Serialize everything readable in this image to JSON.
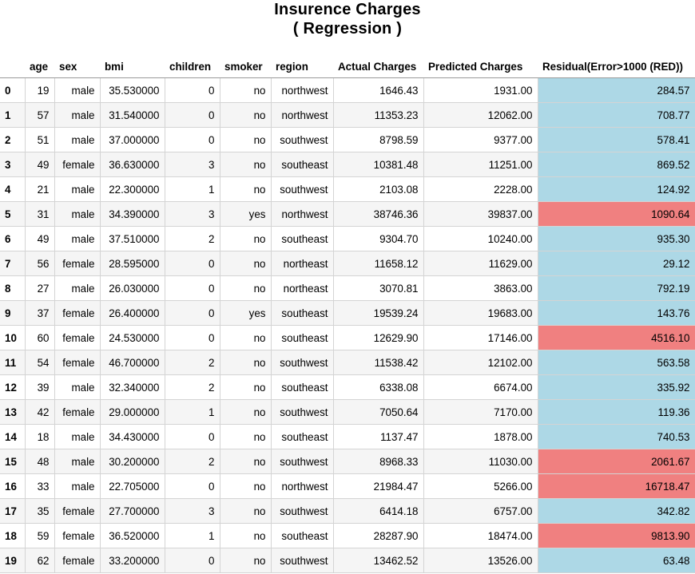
{
  "title": {
    "line1": "Insurence Charges",
    "line2": "( Regression )"
  },
  "colors": {
    "residual_ok": "#add8e6",
    "residual_bad": "#f08080",
    "row_stripe": "#f5f5f5"
  },
  "table": {
    "columns": [
      "",
      "age",
      "sex",
      "bmi",
      "children",
      "smoker",
      "region",
      "Actual Charges",
      "Predicted Charges",
      "Residual(Error>1000 (RED))"
    ],
    "rows": [
      {
        "index": "0",
        "age": "19",
        "sex": "male",
        "bmi": "35.530000",
        "children": "0",
        "smoker": "no",
        "region": "northwest",
        "actual": "1646.43",
        "predicted": "1931.00",
        "residual": "284.57",
        "flag": "ok"
      },
      {
        "index": "1",
        "age": "57",
        "sex": "male",
        "bmi": "31.540000",
        "children": "0",
        "smoker": "no",
        "region": "northwest",
        "actual": "11353.23",
        "predicted": "12062.00",
        "residual": "708.77",
        "flag": "ok"
      },
      {
        "index": "2",
        "age": "51",
        "sex": "male",
        "bmi": "37.000000",
        "children": "0",
        "smoker": "no",
        "region": "southwest",
        "actual": "8798.59",
        "predicted": "9377.00",
        "residual": "578.41",
        "flag": "ok"
      },
      {
        "index": "3",
        "age": "49",
        "sex": "female",
        "bmi": "36.630000",
        "children": "3",
        "smoker": "no",
        "region": "southeast",
        "actual": "10381.48",
        "predicted": "11251.00",
        "residual": "869.52",
        "flag": "ok"
      },
      {
        "index": "4",
        "age": "21",
        "sex": "male",
        "bmi": "22.300000",
        "children": "1",
        "smoker": "no",
        "region": "southwest",
        "actual": "2103.08",
        "predicted": "2228.00",
        "residual": "124.92",
        "flag": "ok"
      },
      {
        "index": "5",
        "age": "31",
        "sex": "male",
        "bmi": "34.390000",
        "children": "3",
        "smoker": "yes",
        "region": "northwest",
        "actual": "38746.36",
        "predicted": "39837.00",
        "residual": "1090.64",
        "flag": "bad"
      },
      {
        "index": "6",
        "age": "49",
        "sex": "male",
        "bmi": "37.510000",
        "children": "2",
        "smoker": "no",
        "region": "southeast",
        "actual": "9304.70",
        "predicted": "10240.00",
        "residual": "935.30",
        "flag": "ok"
      },
      {
        "index": "7",
        "age": "56",
        "sex": "female",
        "bmi": "28.595000",
        "children": "0",
        "smoker": "no",
        "region": "northeast",
        "actual": "11658.12",
        "predicted": "11629.00",
        "residual": "29.12",
        "flag": "ok"
      },
      {
        "index": "8",
        "age": "27",
        "sex": "male",
        "bmi": "26.030000",
        "children": "0",
        "smoker": "no",
        "region": "northeast",
        "actual": "3070.81",
        "predicted": "3863.00",
        "residual": "792.19",
        "flag": "ok"
      },
      {
        "index": "9",
        "age": "37",
        "sex": "female",
        "bmi": "26.400000",
        "children": "0",
        "smoker": "yes",
        "region": "southeast",
        "actual": "19539.24",
        "predicted": "19683.00",
        "residual": "143.76",
        "flag": "ok"
      },
      {
        "index": "10",
        "age": "60",
        "sex": "female",
        "bmi": "24.530000",
        "children": "0",
        "smoker": "no",
        "region": "southeast",
        "actual": "12629.90",
        "predicted": "17146.00",
        "residual": "4516.10",
        "flag": "bad"
      },
      {
        "index": "11",
        "age": "54",
        "sex": "female",
        "bmi": "46.700000",
        "children": "2",
        "smoker": "no",
        "region": "southwest",
        "actual": "11538.42",
        "predicted": "12102.00",
        "residual": "563.58",
        "flag": "ok"
      },
      {
        "index": "12",
        "age": "39",
        "sex": "male",
        "bmi": "32.340000",
        "children": "2",
        "smoker": "no",
        "region": "southeast",
        "actual": "6338.08",
        "predicted": "6674.00",
        "residual": "335.92",
        "flag": "ok"
      },
      {
        "index": "13",
        "age": "42",
        "sex": "female",
        "bmi": "29.000000",
        "children": "1",
        "smoker": "no",
        "region": "southwest",
        "actual": "7050.64",
        "predicted": "7170.00",
        "residual": "119.36",
        "flag": "ok"
      },
      {
        "index": "14",
        "age": "18",
        "sex": "male",
        "bmi": "34.430000",
        "children": "0",
        "smoker": "no",
        "region": "southeast",
        "actual": "1137.47",
        "predicted": "1878.00",
        "residual": "740.53",
        "flag": "ok"
      },
      {
        "index": "15",
        "age": "48",
        "sex": "male",
        "bmi": "30.200000",
        "children": "2",
        "smoker": "no",
        "region": "southwest",
        "actual": "8968.33",
        "predicted": "11030.00",
        "residual": "2061.67",
        "flag": "bad"
      },
      {
        "index": "16",
        "age": "33",
        "sex": "male",
        "bmi": "22.705000",
        "children": "0",
        "smoker": "no",
        "region": "northwest",
        "actual": "21984.47",
        "predicted": "5266.00",
        "residual": "16718.47",
        "flag": "bad"
      },
      {
        "index": "17",
        "age": "35",
        "sex": "female",
        "bmi": "27.700000",
        "children": "3",
        "smoker": "no",
        "region": "southwest",
        "actual": "6414.18",
        "predicted": "6757.00",
        "residual": "342.82",
        "flag": "ok"
      },
      {
        "index": "18",
        "age": "59",
        "sex": "female",
        "bmi": "36.520000",
        "children": "1",
        "smoker": "no",
        "region": "southeast",
        "actual": "28287.90",
        "predicted": "18474.00",
        "residual": "9813.90",
        "flag": "bad"
      },
      {
        "index": "19",
        "age": "62",
        "sex": "female",
        "bmi": "33.200000",
        "children": "0",
        "smoker": "no",
        "region": "southwest",
        "actual": "13462.52",
        "predicted": "13526.00",
        "residual": "63.48",
        "flag": "ok"
      }
    ]
  }
}
